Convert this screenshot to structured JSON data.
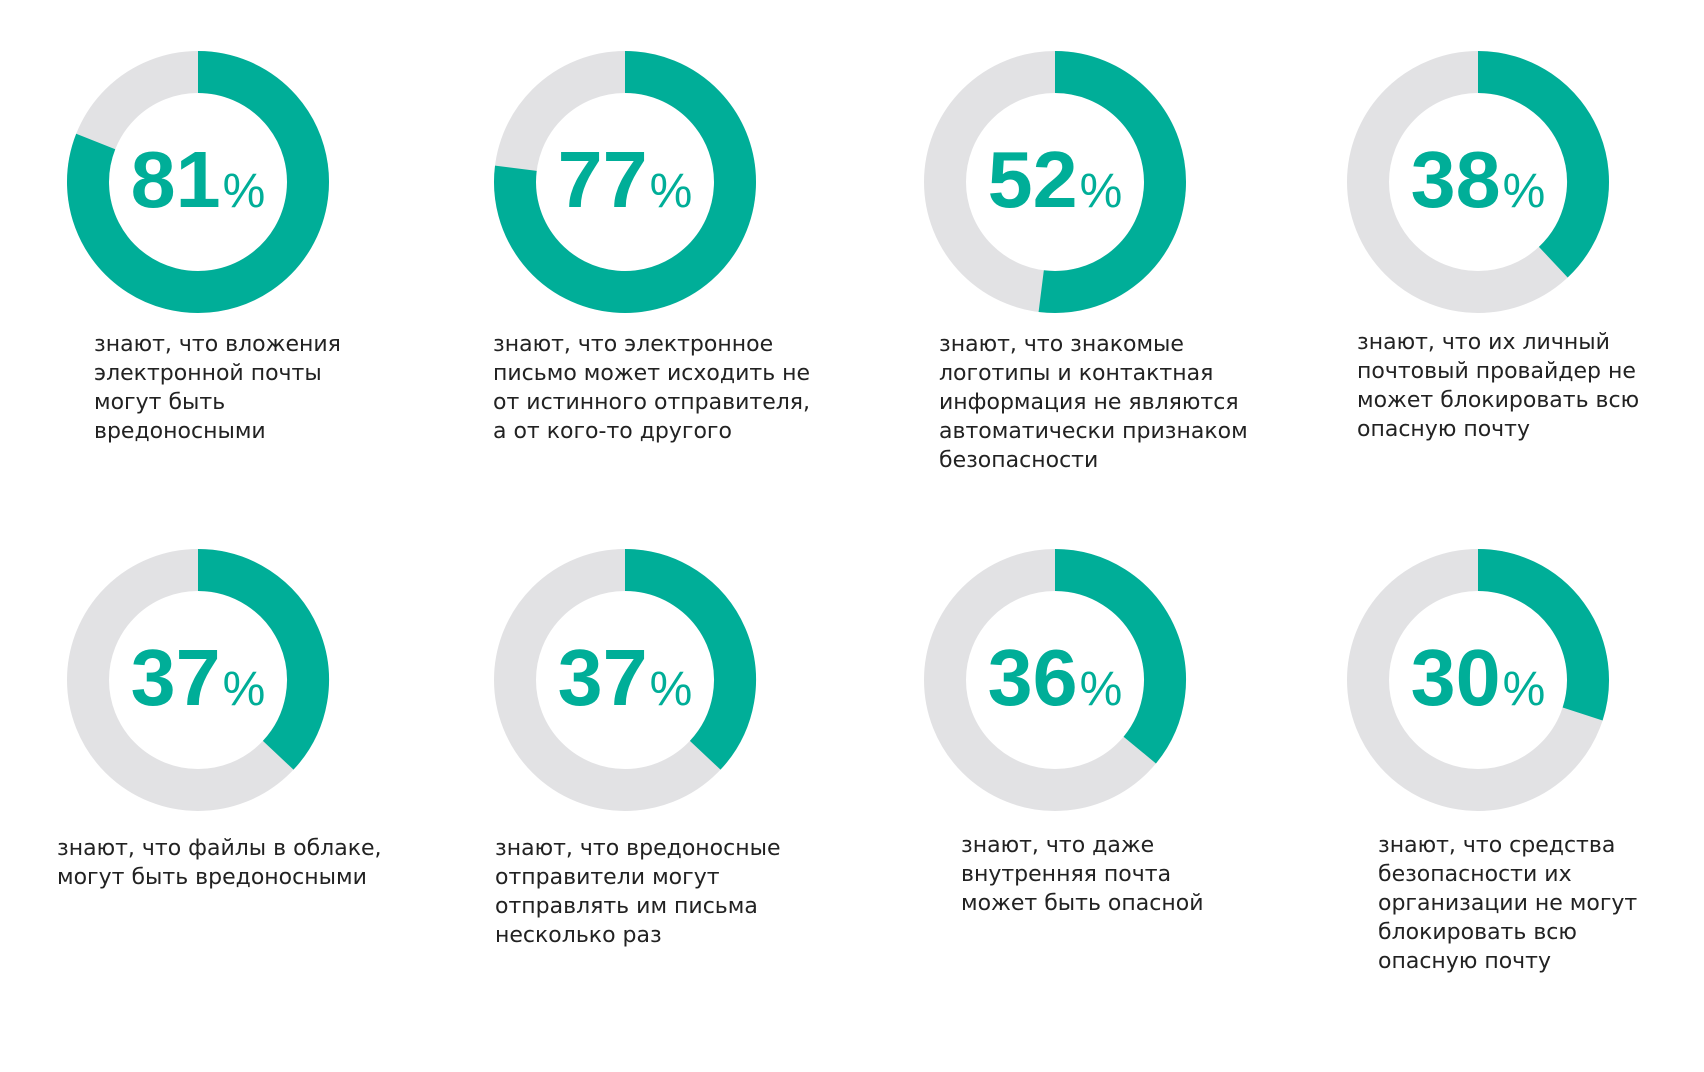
{
  "chart_data": [
    {
      "type": "donut",
      "value": 81,
      "value_text": "81",
      "unit": "%",
      "caption": [
        "знают, что вложения",
        "электронной почты",
        "могут быть",
        "вредоносными"
      ]
    },
    {
      "type": "donut",
      "value": 77,
      "value_text": "77",
      "unit": "%",
      "caption": [
        "знают, что электронное",
        "письмо может исходить не",
        "от истинного отправителя,",
        "а от кого-то другого"
      ]
    },
    {
      "type": "donut",
      "value": 52,
      "value_text": "52",
      "unit": "%",
      "caption": [
        "знают, что знакомые",
        "логотипы и контактная",
        "информация не являются",
        "автоматически признаком",
        "безопасности"
      ]
    },
    {
      "type": "donut",
      "value": 38,
      "value_text": "38",
      "unit": "%",
      "caption": [
        "знают, что их личный",
        "почтовый провайдер не",
        "может блокировать всю",
        "опасную почту"
      ]
    },
    {
      "type": "donut",
      "value": 37,
      "value_text": "37",
      "unit": "%",
      "caption": [
        "знают, что файлы в облаке,",
        "могут быть вредоносными"
      ]
    },
    {
      "type": "donut",
      "value": 37,
      "value_text": "37",
      "unit": "%",
      "caption": [
        "знают, что вредоносные",
        "отправители могут",
        "отправлять им письма",
        "несколько раз"
      ]
    },
    {
      "type": "donut",
      "value": 36,
      "value_text": "36",
      "unit": "%",
      "caption": [
        "знают, что даже",
        "внутренняя почта",
        "может быть опасной"
      ]
    },
    {
      "type": "donut",
      "value": 30,
      "value_text": "30",
      "unit": "%",
      "caption": [
        "знают, что средства",
        "безопасности их",
        "организации не могут",
        "блокировать всю",
        "опасную почту"
      ]
    }
  ],
  "colors": {
    "accent": "#00ae98",
    "track": "#e2e2e4",
    "text": "#222222"
  }
}
